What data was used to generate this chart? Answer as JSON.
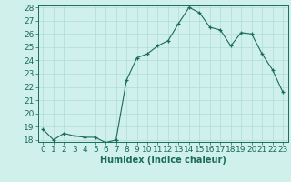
{
  "x": [
    0,
    1,
    2,
    3,
    4,
    5,
    6,
    7,
    8,
    9,
    10,
    11,
    12,
    13,
    14,
    15,
    16,
    17,
    18,
    19,
    20,
    21,
    22,
    23
  ],
  "y": [
    18.8,
    18.0,
    18.5,
    18.3,
    18.2,
    18.2,
    17.8,
    18.0,
    22.5,
    24.2,
    24.5,
    25.1,
    25.5,
    26.8,
    28.0,
    27.6,
    26.5,
    26.3,
    25.1,
    26.1,
    26.0,
    24.5,
    23.3,
    21.6
  ],
  "xlabel": "Humidex (Indice chaleur)",
  "ylim": [
    18,
    28
  ],
  "xlim": [
    -0.5,
    23.5
  ],
  "yticks": [
    18,
    19,
    20,
    21,
    22,
    23,
    24,
    25,
    26,
    27,
    28
  ],
  "xticks": [
    0,
    1,
    2,
    3,
    4,
    5,
    6,
    7,
    8,
    9,
    10,
    11,
    12,
    13,
    14,
    15,
    16,
    17,
    18,
    19,
    20,
    21,
    22,
    23
  ],
  "line_color": "#1a6b5a",
  "marker": "+",
  "bg_color": "#cff0eb",
  "grid_color": "#aeddd8",
  "tick_label_color": "#1a6b5a",
  "xlabel_color": "#1a6b5a",
  "font_size": 6.5
}
